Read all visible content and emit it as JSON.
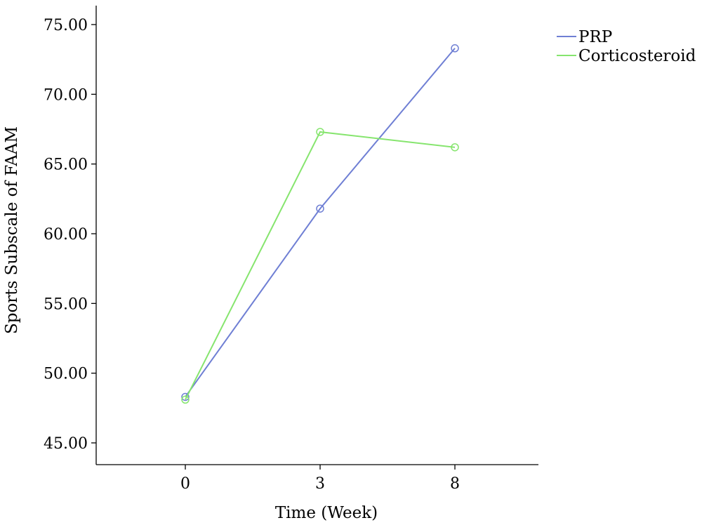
{
  "chart_data": {
    "type": "line",
    "x": [
      "0",
      "3",
      "8"
    ],
    "xlabel": "Time (Week)",
    "ylabel": "Sports Subscale of FAAM",
    "ylim": [
      45,
      75
    ],
    "yticks": [
      "45.00",
      "50.00",
      "55.00",
      "60.00",
      "65.00",
      "70.00",
      "75.00"
    ],
    "grid": false,
    "legend_position": "top-right",
    "series": [
      {
        "name": "PRP",
        "color": "#6f7fd4",
        "values": [
          48.3,
          61.8,
          73.3
        ]
      },
      {
        "name": "Corticosteroid",
        "color": "#86e56e",
        "values": [
          48.1,
          67.3,
          66.2
        ]
      }
    ]
  }
}
